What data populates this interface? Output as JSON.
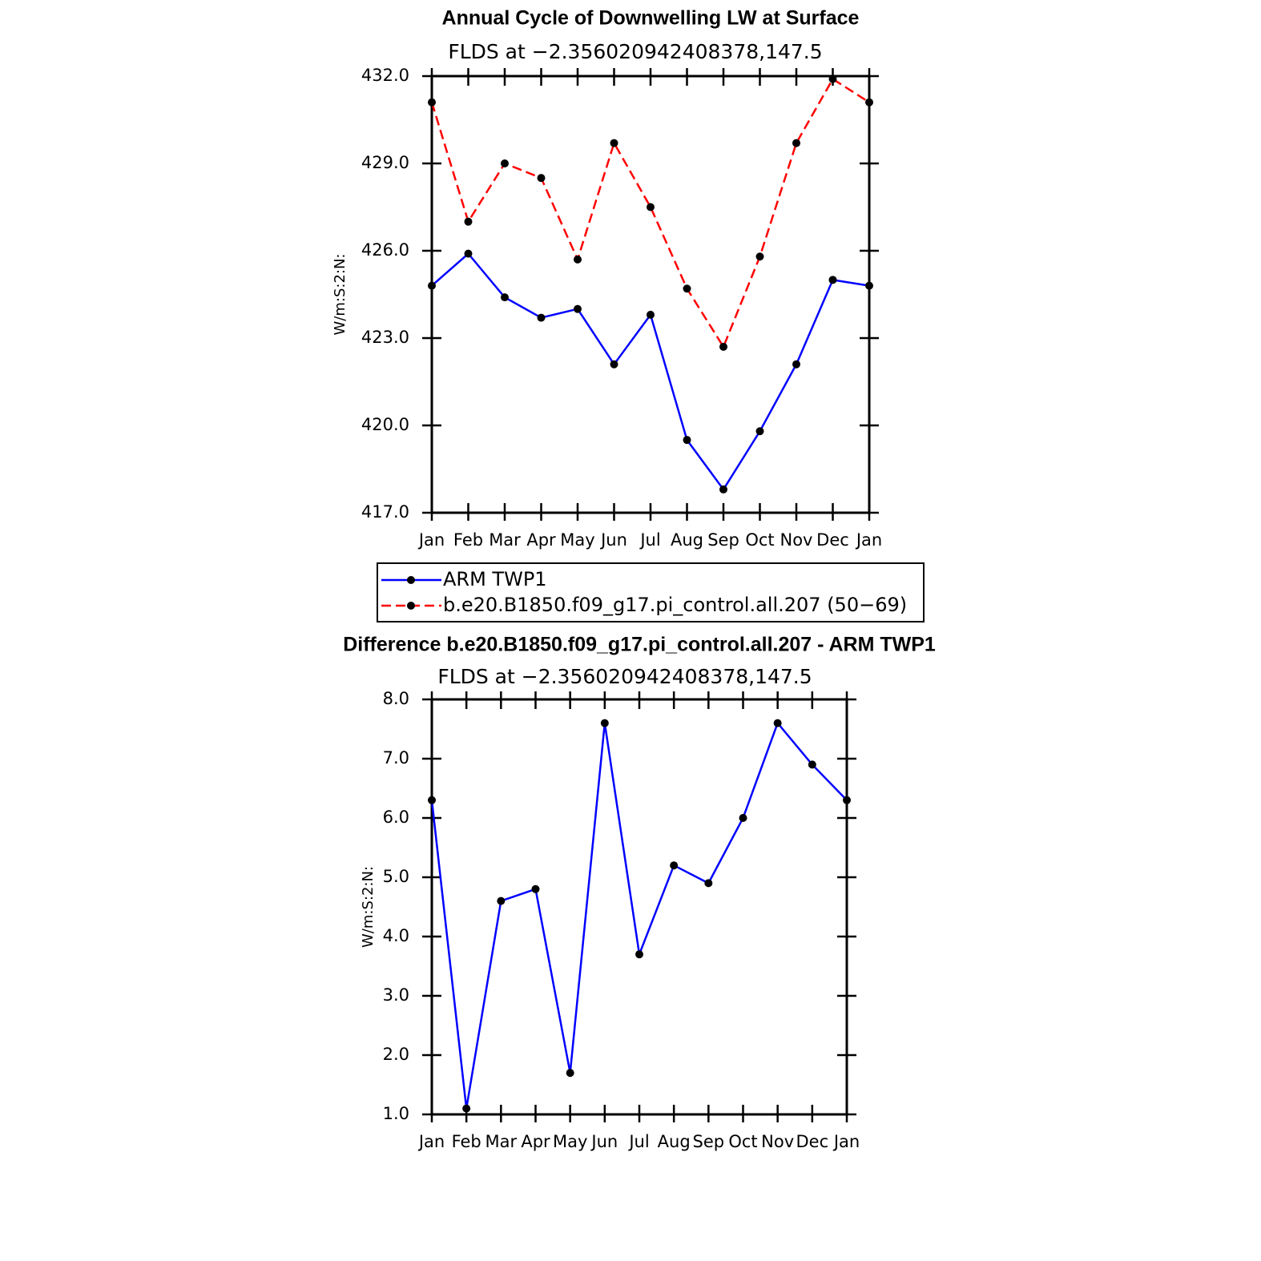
{
  "chart_data": [
    {
      "type": "line",
      "title": "Annual Cycle of Downwelling LW at Surface",
      "subtitle": "FLDS at −2.356020942408378,147.5",
      "ylabel": "W/m:S:2:N:",
      "categories": [
        "Jan",
        "Feb",
        "Mar",
        "Apr",
        "May",
        "Jun",
        "Jul",
        "Aug",
        "Sep",
        "Oct",
        "Nov",
        "Dec",
        "Jan"
      ],
      "series": [
        {
          "name": "ARM TWP1",
          "color": "#0000ff",
          "line_style": "solid",
          "marker_color": "#000000",
          "values": [
            424.8,
            425.9,
            424.4,
            423.7,
            424.0,
            422.1,
            423.8,
            419.5,
            417.8,
            419.8,
            422.1,
            425.0,
            424.8
          ]
        },
        {
          "name": "b.e20.B1850.f09_g17.pi_control.all.207 (50−69)",
          "color": "#ff0000",
          "line_style": "dashed",
          "marker_color": "#000000",
          "values": [
            431.1,
            427.0,
            429.0,
            428.5,
            425.7,
            429.7,
            427.5,
            424.7,
            422.7,
            425.8,
            429.7,
            431.9,
            431.1
          ]
        }
      ],
      "ylim": [
        417,
        432
      ],
      "yticks": [
        {
          "value": 417,
          "label": "417.0"
        },
        {
          "value": 420,
          "label": "420.0"
        },
        {
          "value": 423,
          "label": "423.0"
        },
        {
          "value": 426,
          "label": "426.0"
        },
        {
          "value": 429,
          "label": "429.0"
        },
        {
          "value": 432,
          "label": "432.0"
        }
      ],
      "legend": "below"
    },
    {
      "type": "line",
      "title": "Difference b.e20.B1850.f09_g17.pi_control.all.207 - ARM TWP1",
      "subtitle": "FLDS at −2.356020942408378,147.5",
      "ylabel": "W/m:S:2:N:",
      "categories": [
        "Jan",
        "Feb",
        "Mar",
        "Apr",
        "May",
        "Jun",
        "Jul",
        "Aug",
        "Sep",
        "Oct",
        "Nov",
        "Dec",
        "Jan"
      ],
      "series": [
        {
          "color": "#0000ff",
          "line_style": "solid",
          "marker_color": "#000000",
          "values": [
            6.3,
            1.1,
            4.6,
            4.8,
            1.7,
            7.6,
            3.7,
            5.2,
            4.9,
            6.0,
            7.6,
            6.9,
            6.3
          ]
        }
      ],
      "ylim": [
        1,
        8
      ],
      "yticks": [
        {
          "value": 1,
          "label": "1.0"
        },
        {
          "value": 2,
          "label": "2.0"
        },
        {
          "value": 3,
          "label": "3.0"
        },
        {
          "value": 4,
          "label": "4.0"
        },
        {
          "value": 5,
          "label": "5.0"
        },
        {
          "value": 6,
          "label": "6.0"
        },
        {
          "value": 7,
          "label": "7.0"
        },
        {
          "value": 8,
          "label": "8.0"
        }
      ]
    }
  ]
}
